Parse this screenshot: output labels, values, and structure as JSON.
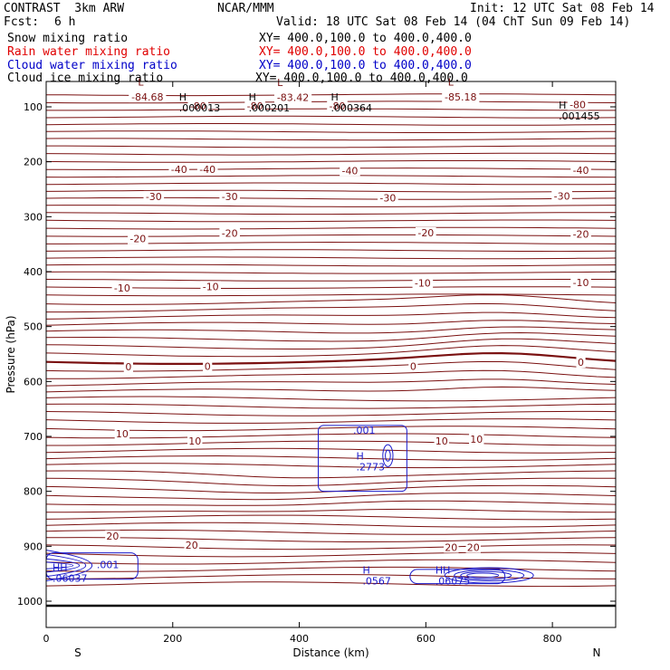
{
  "header": {
    "model": "CONTRAST  3km ARW",
    "center": "NCAR/MMM",
    "init": "Init: 12 UTC Sat 08 Feb 14",
    "fcst_label": "Fcst:",
    "fcst_value": "6 h",
    "valid": "Valid: 18 UTC Sat 08 Feb 14 (04 ChT Sun 09 Feb 14)"
  },
  "fields": [
    {
      "name": "Snow mixing ratio",
      "xy": "XY= 400.0,100.0 to 400.0,400.0",
      "color": "#000000"
    },
    {
      "name": "Rain water mixing ratio",
      "xy": "XY= 400.0,100.0 to 400.0,400.0",
      "color": "#e00000"
    },
    {
      "name": "Cloud water mixing ratio",
      "xy": "XY= 400.0,100.0 to 400.0,400.0",
      "color": "#0000c8"
    },
    {
      "name": "Cloud ice mixing ratio",
      "xy": "XY= 400.0,100.0 to 400.0,400.0",
      "color": "#000000"
    }
  ],
  "colors": {
    "temperature": "#7a1010",
    "cloud": "#1a1acc",
    "axis": "#000000"
  },
  "chart_data": {
    "type": "contour cross-section",
    "xlabel": "Distance (km)",
    "ylabel": "Pressure (hPa)",
    "xlim": [
      0,
      900
    ],
    "ylim": [
      1050,
      50
    ],
    "x_ticks": [
      0,
      200,
      400,
      600,
      800
    ],
    "y_ticks": [
      100,
      200,
      300,
      400,
      500,
      600,
      700,
      800,
      900,
      1000
    ],
    "x_end_labels": {
      "left": "S",
      "right": "N"
    },
    "temperature_labels": [
      {
        "text": "-84.68",
        "x": 160,
        "p": 82
      },
      {
        "text": "-83.42",
        "x": 390,
        "p": 83
      },
      {
        "text": "-85.18",
        "x": 655,
        "p": 82
      },
      {
        "text": "-80",
        "x": 240,
        "p": 98
      },
      {
        "text": "-80",
        "x": 330,
        "p": 98
      },
      {
        "text": "-80",
        "x": 460,
        "p": 98
      },
      {
        "text": "-80",
        "x": 840,
        "p": 96
      },
      {
        "text": "-40",
        "x": 210,
        "p": 214
      },
      {
        "text": "-40",
        "x": 255,
        "p": 214
      },
      {
        "text": "-40",
        "x": 480,
        "p": 216
      },
      {
        "text": "-40",
        "x": 845,
        "p": 215
      },
      {
        "text": "-30",
        "x": 170,
        "p": 263
      },
      {
        "text": "-30",
        "x": 290,
        "p": 263
      },
      {
        "text": "-30",
        "x": 540,
        "p": 266
      },
      {
        "text": "-30",
        "x": 815,
        "p": 262
      },
      {
        "text": "-20",
        "x": 145,
        "p": 340
      },
      {
        "text": "-20",
        "x": 290,
        "p": 330
      },
      {
        "text": "-20",
        "x": 600,
        "p": 329
      },
      {
        "text": "-20",
        "x": 845,
        "p": 332
      },
      {
        "text": "-10",
        "x": 120,
        "p": 430
      },
      {
        "text": "-10",
        "x": 260,
        "p": 427
      },
      {
        "text": "-10",
        "x": 595,
        "p": 421
      },
      {
        "text": "-10",
        "x": 845,
        "p": 420
      },
      {
        "text": "0",
        "x": 130,
        "p": 573
      },
      {
        "text": "0",
        "x": 255,
        "p": 572
      },
      {
        "text": "0",
        "x": 580,
        "p": 572
      },
      {
        "text": "0",
        "x": 845,
        "p": 565
      },
      {
        "text": "10",
        "x": 120,
        "p": 695
      },
      {
        "text": "10",
        "x": 235,
        "p": 708
      },
      {
        "text": "10",
        "x": 625,
        "p": 708
      },
      {
        "text": "10",
        "x": 680,
        "p": 705
      },
      {
        "text": "20",
        "x": 105,
        "p": 881
      },
      {
        "text": "20",
        "x": 230,
        "p": 898
      },
      {
        "text": "20",
        "x": 640,
        "p": 902
      },
      {
        "text": "20",
        "x": 675,
        "p": 902
      }
    ],
    "extrema": [
      {
        "type": "L",
        "value": "",
        "x": 145,
        "p": 66,
        "color": "temperature"
      },
      {
        "type": "L",
        "value": "",
        "x": 365,
        "p": 67,
        "color": "temperature"
      },
      {
        "type": "L",
        "value": "",
        "x": 635,
        "p": 66,
        "color": "temperature"
      },
      {
        "type": "H",
        "value": ".000013",
        "x": 210,
        "p": 93,
        "color": "axis"
      },
      {
        "type": "H",
        "value": ".000201",
        "x": 320,
        "p": 93,
        "color": "axis"
      },
      {
        "type": "H",
        "value": ".000364",
        "x": 450,
        "p": 93,
        "color": "axis"
      },
      {
        "type": "H",
        "value": ".001455",
        "x": 810,
        "p": 108,
        "color": "axis"
      },
      {
        "type": "",
        "value": ".001",
        "x": 485,
        "p": 680,
        "color": "cloud"
      },
      {
        "type": "H",
        "value": ".2773",
        "x": 490,
        "p": 747,
        "color": "cloud"
      },
      {
        "type": "",
        "value": ".001",
        "x": 80,
        "p": 925,
        "color": "cloud"
      },
      {
        "type": "HH",
        "value": ".06037",
        "x": 10,
        "p": 950,
        "color": "cloud"
      },
      {
        "type": "H",
        "value": ".0567",
        "x": 500,
        "p": 955,
        "color": "cloud"
      },
      {
        "type": "HH",
        "value": ".06075",
        "x": 615,
        "p": 955,
        "color": "cloud"
      }
    ],
    "temperature_levels": [
      -80,
      -40,
      -30,
      -20,
      -10,
      0,
      10,
      20
    ],
    "cloud_water_max": 0.2773
  }
}
